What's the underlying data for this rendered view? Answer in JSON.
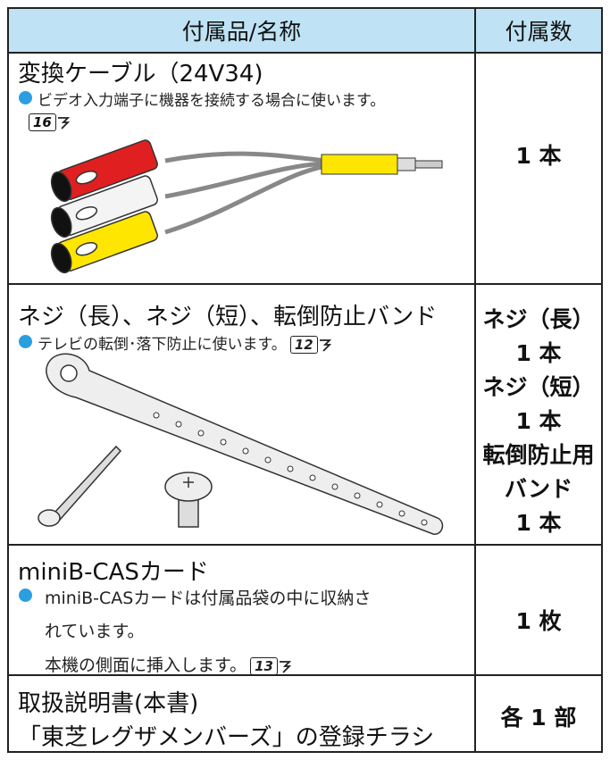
{
  "table": {
    "header": [
      "付属品/名称",
      "付属数"
    ],
    "rows": [
      {
        "name": [
          "変換ケーブル（24V34)"
        ],
        "notes": [
          "ビデオ入力端子に機器を接続する場合に使います。"
        ],
        "ref": "16",
        "count": [
          "1 本"
        ]
      },
      {
        "name": [
          "ネジ（長）、ネジ（短）、転倒防止バンド"
        ],
        "notes": [
          "テレビの転倒･落下防止に使います。"
        ],
        "ref": "12",
        "count": [
          "ネジ（長）",
          "1 本",
          "ネジ（短）",
          "1 本",
          "転倒防止用",
          "バンド",
          "1 本"
        ]
      },
      {
        "name": [
          "miniB-CASカード"
        ],
        "notes": [
          "miniB-CASカードは付属品袋の中に収納さ",
          "れています。",
          "本機の側面に挿入します。"
        ],
        "ref": "13",
        "count": [
          "1 枚"
        ]
      },
      {
        "name": [
          "取扱説明書(本書)",
          "「東芝レグザメンバーズ」の登録チラシ"
        ],
        "count": [
          "各 1 部"
        ]
      }
    ]
  }
}
